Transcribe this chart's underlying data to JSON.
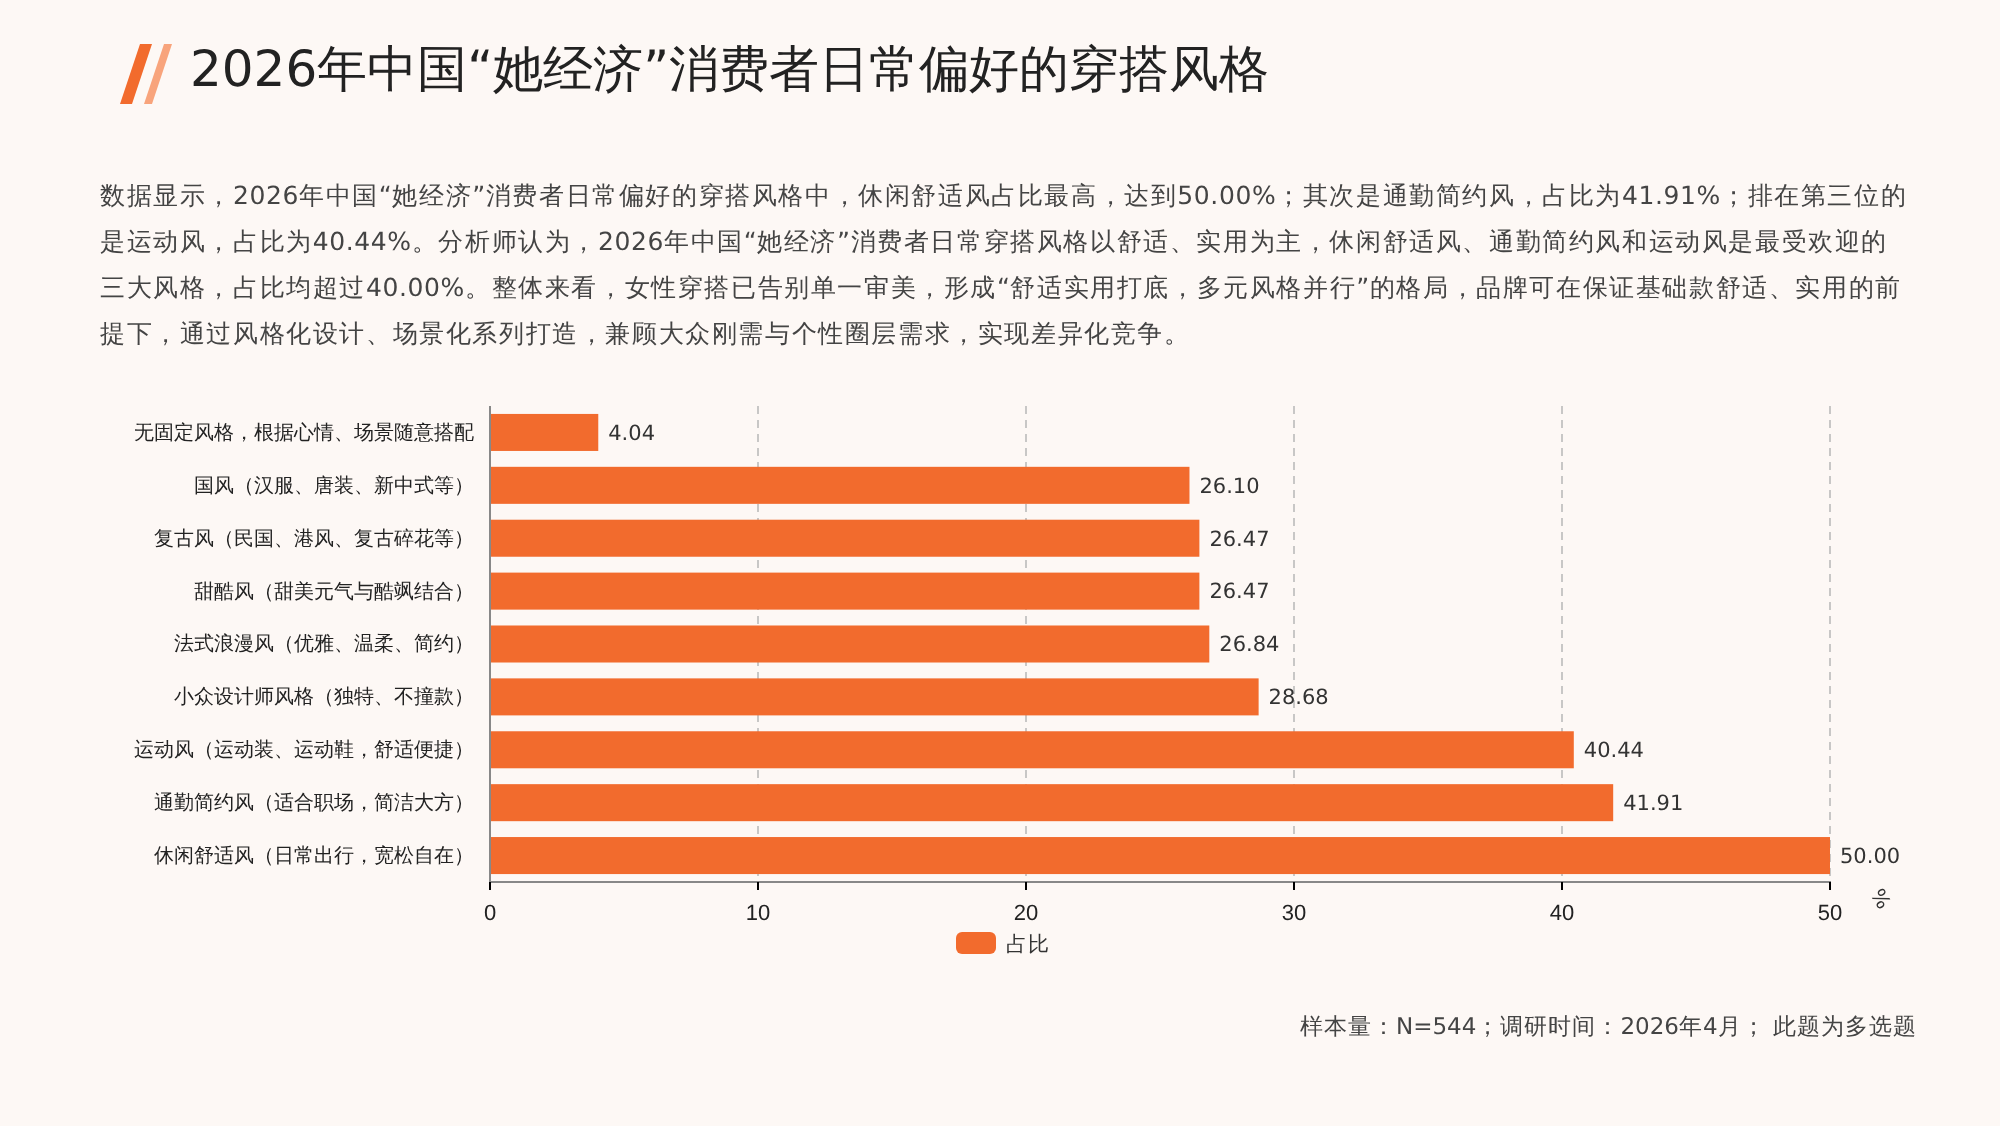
{
  "chart_data": {
    "type": "bar",
    "orientation": "horizontal",
    "title": "2026年中国“她经济”消费者日常偏好的穿搭风格",
    "annotations": [
      "数据显示，2026年中国“她经济”消费者日常偏好的穿搭风格中，休闲舒适风占比最高，达到50.00%；其次是通勤简约风，占比为41.91%；排在第三位的是运动风，占比为40.44%。分析师认为，2026年中国“她经济”消费者日常穿搭风格以舒适、实用为主，休闲舒适风、通勤简约风和运动风是最受欢迎的三大风格，占比均超过40.00%。整体来看，女性穿搭已告别单一审美，形成“舒适实用打底，多元风格并行”的格局，品牌可在保证基础款舒适、实用的前提下，通过风格化设计、场景化系列打造，兼顾大众刚需与个性圈层需求，实现差异化竞争。",
      "样本量：N=544；调研时间：2026年4月； 此题为多选题"
    ],
    "xlabel": "%",
    "categories": [
      "无固定风格，根据心情、场景随意搭配",
      "国风（汉服、唐装、新中式等）",
      "复古风（民国、港风、复古碎花等）",
      "甜酷风（甜美元气与酷飒结合）",
      "法式浪漫风（优雅、温柔、简约）",
      "小众设计师风格（独特、不撞款）",
      "运动风（运动装、运动鞋，舒适便捷）",
      "通勤简约风（适合职场，简洁大方）",
      "休闲舒适风（日常出行，宽松自在）"
    ],
    "series": [
      {
        "name": "占比",
        "color": "#f26b2d",
        "values": [
          4.04,
          26.1,
          26.47,
          26.47,
          26.84,
          28.68,
          40.44,
          41.91,
          50.0
        ],
        "value_labels": [
          "4.04",
          "26.10",
          "26.47",
          "26.47",
          "26.84",
          "28.68",
          "40.44",
          "41.91",
          "50.00"
        ]
      }
    ],
    "xlim": [
      0,
      50
    ],
    "xticks": [
      0,
      10,
      20,
      30,
      40,
      50
    ],
    "grid": "x",
    "legend": "bottom",
    "data_labels": true
  }
}
